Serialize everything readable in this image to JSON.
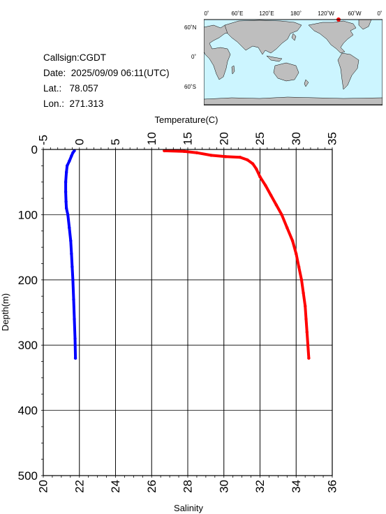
{
  "info": {
    "callsign": "Callsign:CGDT",
    "date_label": "Date:",
    "date_value": "2025/09/09 06:11(UTC)",
    "lat_label": "Lat.:",
    "lat_value": "78.057",
    "lon_label": "Lon.:",
    "lon_value": "271.313"
  },
  "map": {
    "lon_labels": [
      "0˚",
      "60˚E",
      "120˚E",
      "180˚",
      "120˚W",
      "60˚W",
      "0˚"
    ],
    "lat_labels": [
      "60˚N",
      "0˚",
      "60˚S"
    ],
    "ocean_color": "#ccf5ff",
    "land_color": "#bebebe",
    "marker_color": "#ff0000"
  },
  "chart_data": {
    "type": "line",
    "ylabel": "Depth(m)",
    "ylim": [
      0,
      500
    ],
    "yticks": [
      0,
      100,
      200,
      300,
      400,
      500
    ],
    "temperature_axis": {
      "label": "Temperature(C)",
      "lim": [
        -5,
        35
      ],
      "ticks": [
        -5,
        0,
        5,
        10,
        15,
        20,
        25,
        30,
        35
      ]
    },
    "salinity_axis": {
      "label": "Salinity",
      "lim": [
        20,
        36
      ],
      "ticks": [
        20,
        22,
        24,
        26,
        28,
        30,
        32,
        34,
        36
      ]
    },
    "grid": true,
    "series": [
      {
        "color": "#0000ff",
        "axis": "temperature",
        "points": [
          [
            -0.7,
            2
          ],
          [
            -0.9,
            5
          ],
          [
            -1.1,
            10
          ],
          [
            -1.4,
            18
          ],
          [
            -1.7,
            25
          ],
          [
            -1.8,
            35
          ],
          [
            -1.9,
            50
          ],
          [
            -1.9,
            65
          ],
          [
            -1.85,
            80
          ],
          [
            -1.8,
            90
          ],
          [
            -1.6,
            100
          ],
          [
            -1.4,
            120
          ],
          [
            -1.2,
            140
          ],
          [
            -1.1,
            160
          ],
          [
            -1.0,
            180
          ],
          [
            -0.9,
            200
          ],
          [
            -0.8,
            230
          ],
          [
            -0.7,
            260
          ],
          [
            -0.6,
            290
          ],
          [
            -0.55,
            320
          ]
        ]
      },
      {
        "color": "#ff0000",
        "axis": "salinity",
        "points": [
          [
            26.7,
            2
          ],
          [
            27.8,
            3
          ],
          [
            28.5,
            5
          ],
          [
            29.3,
            9
          ],
          [
            30.1,
            11
          ],
          [
            30.9,
            12
          ],
          [
            31.3,
            16
          ],
          [
            31.6,
            22
          ],
          [
            31.8,
            30
          ],
          [
            32.0,
            42
          ],
          [
            32.3,
            55
          ],
          [
            32.6,
            70
          ],
          [
            32.9,
            85
          ],
          [
            33.2,
            100
          ],
          [
            33.5,
            120
          ],
          [
            33.8,
            140
          ],
          [
            34.0,
            160
          ],
          [
            34.15,
            180
          ],
          [
            34.3,
            200
          ],
          [
            34.4,
            220
          ],
          [
            34.5,
            240
          ],
          [
            34.55,
            260
          ],
          [
            34.6,
            280
          ],
          [
            34.65,
            300
          ],
          [
            34.7,
            320
          ]
        ]
      }
    ]
  }
}
